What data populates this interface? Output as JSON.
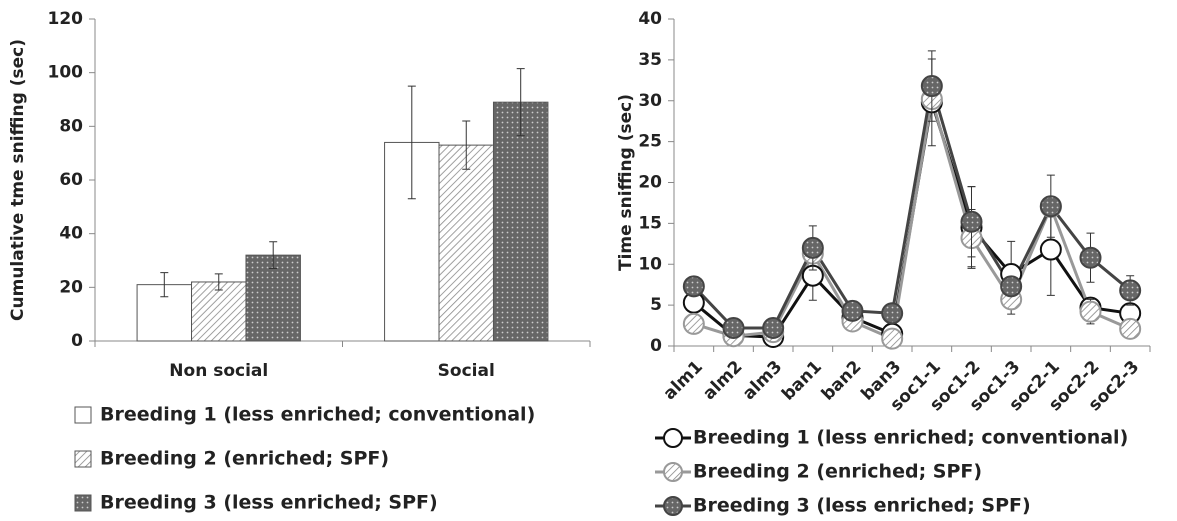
{
  "chart_data": [
    {
      "type": "bar",
      "ylabel": "Cumulative tme sniffing (sec)",
      "categories": [
        "Non social",
        "Social"
      ],
      "series": [
        {
          "name": "Breeding 1 (less enriched; conventional)",
          "color": "#ffffff",
          "pattern": "none",
          "values": [
            21,
            74
          ],
          "errors": [
            4.5,
            21
          ]
        },
        {
          "name": "Breeding 2 (enriched; SPF)",
          "color": "#bbbbbb",
          "pattern": "hatch",
          "values": [
            22,
            73
          ],
          "errors": [
            3,
            9
          ]
        },
        {
          "name": "Breeding 3 (less enriched; SPF)",
          "color": "#777777",
          "pattern": "dots",
          "values": [
            32,
            89
          ],
          "errors": [
            5,
            12.5
          ]
        }
      ],
      "ylim": [
        0,
        120
      ],
      "yticks": [
        0,
        20,
        40,
        60,
        80,
        100,
        120
      ]
    },
    {
      "type": "line",
      "ylabel": "Time sniffing (sec)",
      "categories": [
        "alm1",
        "alm2",
        "alm3",
        "ban1",
        "ban2",
        "ban3",
        "soc1-1",
        "soc1-2",
        "soc1-3",
        "soc2-1",
        "soc2-2",
        "soc2-3"
      ],
      "series": [
        {
          "name": "Breeding 1 (less enriched; conventional)",
          "color": "#111111",
          "marker_fill": "#ffffff",
          "pattern": "none",
          "values": [
            5.3,
            1.3,
            1.1,
            8.6,
            3.5,
            1.5,
            29.8,
            14.5,
            8.8,
            11.8,
            4.7,
            4.0
          ],
          "errors": [
            0.8,
            null,
            null,
            3.0,
            null,
            null,
            5.3,
            5.0,
            4.0,
            5.6,
            1.0,
            null
          ]
        },
        {
          "name": "Breeding 2 (enriched; SPF)",
          "color": "#999999",
          "marker_fill": "#cccccc",
          "pattern": "hatch",
          "values": [
            2.7,
            1.2,
            1.7,
            11.3,
            3.0,
            0.9,
            30.2,
            13.2,
            5.7,
            17.0,
            4.2,
            2.1
          ],
          "errors": [
            null,
            null,
            null,
            null,
            null,
            null,
            null,
            3.5,
            1.8,
            null,
            1.5,
            null
          ]
        },
        {
          "name": "Breeding 3 (less enriched; SPF)",
          "color": "#444444",
          "marker_fill": "#444444",
          "pattern": "dots",
          "values": [
            7.3,
            2.2,
            2.2,
            12.0,
            4.3,
            4.0,
            31.8,
            15.2,
            7.3,
            17.1,
            10.8,
            6.8
          ],
          "errors": [
            null,
            null,
            null,
            2.7,
            null,
            null,
            4.3,
            4.3,
            null,
            3.8,
            3.0,
            1.8
          ]
        }
      ],
      "ylim": [
        0,
        40
      ],
      "yticks": [
        0,
        5,
        10,
        15,
        20,
        25,
        30,
        35,
        40
      ]
    }
  ]
}
